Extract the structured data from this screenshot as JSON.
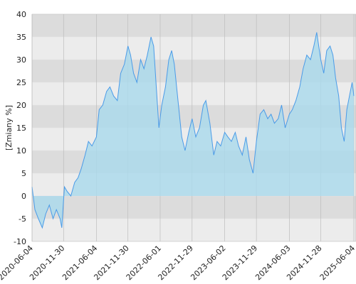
{
  "chart_data": {
    "type": "area",
    "y_label": "[Zmiany %]",
    "color": "#4a9be8",
    "fill": "#a9d9ec",
    "xlim": [
      "2020-06-04",
      "2025-06-16"
    ],
    "xticks": [
      "2020-06-04",
      "2020-11-30",
      "2021-06-04",
      "2021-11-30",
      "2022-06-01",
      "2022-11-29",
      "2023-06-02",
      "2023-11-29",
      "2024-06-03",
      "2024-11-28",
      "2025-06-04"
    ],
    "ylim": [
      -10,
      40
    ],
    "yticks": [
      -10,
      -5,
      0,
      5,
      10,
      15,
      20,
      25,
      30,
      35,
      40
    ],
    "grid": true,
    "x": [
      "2020-06-04",
      "2020-06-20",
      "2020-07-10",
      "2020-08-01",
      "2020-08-20",
      "2020-09-10",
      "2020-10-01",
      "2020-10-20",
      "2020-11-10",
      "2020-11-20",
      "2020-12-05",
      "2020-12-20",
      "2021-01-10",
      "2021-02-01",
      "2021-02-20",
      "2021-03-10",
      "2021-04-01",
      "2021-04-20",
      "2021-05-10",
      "2021-06-04",
      "2021-06-20",
      "2021-07-10",
      "2021-08-01",
      "2021-08-20",
      "2021-09-10",
      "2021-10-01",
      "2021-10-20",
      "2021-11-10",
      "2021-11-30",
      "2021-12-15",
      "2022-01-01",
      "2022-01-20",
      "2022-02-10",
      "2022-03-01",
      "2022-03-20",
      "2022-04-10",
      "2022-04-25",
      "2022-05-10",
      "2022-05-25",
      "2022-06-10",
      "2022-07-01",
      "2022-07-20",
      "2022-08-05",
      "2022-08-20",
      "2022-09-10",
      "2022-10-01",
      "2022-10-20",
      "2022-11-10",
      "2022-11-29",
      "2022-12-20",
      "2023-01-10",
      "2023-02-01",
      "2023-02-15",
      "2023-03-10",
      "2023-04-01",
      "2023-04-20",
      "2023-05-10",
      "2023-06-02",
      "2023-06-20",
      "2023-07-10",
      "2023-08-01",
      "2023-08-20",
      "2023-09-10",
      "2023-10-01",
      "2023-10-20",
      "2023-11-10",
      "2023-11-29",
      "2023-12-20",
      "2024-01-10",
      "2024-02-01",
      "2024-02-20",
      "2024-03-10",
      "2024-04-01",
      "2024-04-20",
      "2024-05-10",
      "2024-06-03",
      "2024-06-20",
      "2024-07-10",
      "2024-08-01",
      "2024-08-20",
      "2024-09-10",
      "2024-10-01",
      "2024-10-20",
      "2024-11-05",
      "2024-11-28",
      "2024-12-15",
      "2025-01-01",
      "2025-01-20",
      "2025-02-05",
      "2025-02-20",
      "2025-03-10",
      "2025-03-25",
      "2025-04-10",
      "2025-04-25",
      "2025-05-10",
      "2025-05-25",
      "2025-06-04"
    ],
    "values": [
      2,
      -3,
      -5,
      -7,
      -4,
      -2,
      -5,
      -3,
      -5,
      -7,
      2,
      1,
      0,
      3,
      4,
      6,
      9,
      12,
      11,
      13,
      19,
      20,
      23,
      24,
      22,
      21,
      27,
      29,
      33,
      31,
      27,
      25,
      30,
      28,
      31,
      35,
      33,
      24,
      15,
      20,
      24,
      30,
      32,
      29,
      21,
      13,
      10,
      14,
      17,
      13,
      15,
      20,
      21,
      16,
      9,
      12,
      11,
      14,
      13,
      12,
      14,
      11,
      9,
      13,
      8,
      5,
      12,
      18,
      19,
      17,
      18,
      16,
      17,
      20,
      15,
      18,
      19,
      21,
      24,
      28,
      31,
      30,
      33,
      36,
      30,
      27,
      32,
      33,
      31,
      26,
      22,
      15,
      12,
      19,
      22,
      25,
      22
    ]
  }
}
